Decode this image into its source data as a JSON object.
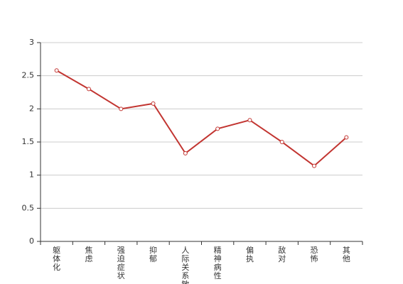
{
  "chart_data": {
    "type": "line",
    "categories": [
      "躯体化",
      "焦虑",
      "强迫症状",
      "抑郁",
      "人际关系敏感",
      "精神病性",
      "偏执",
      "敌对",
      "恐怖",
      "其他"
    ],
    "values": [
      2.58,
      2.3,
      2.0,
      2.08,
      1.33,
      1.7,
      1.83,
      1.5,
      1.14,
      1.57
    ],
    "color": "#c23531",
    "ylim": [
      0,
      3
    ],
    "yticks": [
      0,
      0.5,
      1,
      1.5,
      2,
      2.5,
      3
    ],
    "grid": true
  }
}
